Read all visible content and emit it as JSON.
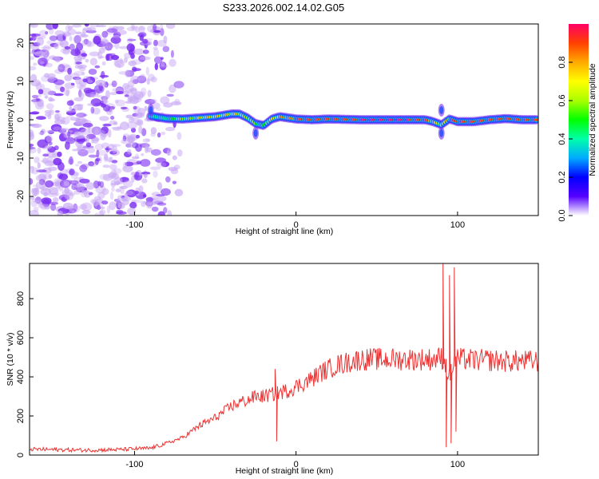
{
  "figure": {
    "title": "S233.2026.002.14.02.G05"
  },
  "chart_data": [
    {
      "type": "heatmap",
      "name": "spectrogram",
      "xlabel": "Height of straight line (km)",
      "ylabel": "Frequency (Hz)",
      "xlim": [
        -165,
        150
      ],
      "ylim": [
        -25,
        25
      ],
      "xticks": [
        -100,
        0,
        100
      ],
      "yticks": [
        -20,
        -10,
        0,
        10,
        20
      ],
      "colorbar": {
        "label": "Normalized spectral amplitude",
        "range": [
          0,
          1
        ],
        "ticks": [
          0,
          0.2,
          0.4,
          0.6,
          0.8
        ],
        "colors": [
          "#ffffff",
          "#5500ff",
          "#0000ff",
          "#00aaff",
          "#00ffaa",
          "#00ff00",
          "#aaff00",
          "#ffff00",
          "#ffaa00",
          "#ff4000",
          "#ff0066"
        ]
      },
      "noise_region": {
        "x_range": [
          -165,
          -70
        ],
        "amplitude_range": [
          0.0,
          0.15
        ]
      },
      "ridge": {
        "x": [
          -90,
          -80,
          -70,
          -60,
          -50,
          -40,
          -35,
          -30,
          -25,
          -20,
          -15,
          -10,
          -5,
          0,
          10,
          20,
          30,
          40,
          50,
          60,
          70,
          80,
          85,
          90,
          95,
          100,
          110,
          120,
          130,
          140,
          150
        ],
        "frequency": [
          1.0,
          0.3,
          0.2,
          0.5,
          0.8,
          1.5,
          1.5,
          0.5,
          -1.0,
          -1.5,
          0.2,
          0.8,
          0.5,
          0.2,
          0.0,
          0.2,
          0.1,
          0.0,
          0.0,
          0.0,
          0.0,
          0.0,
          -0.5,
          -1.3,
          0.2,
          -0.5,
          -0.5,
          0.0,
          0.3,
          0.0,
          0.0
        ],
        "amplitude": [
          0.35,
          0.45,
          0.6,
          0.65,
          0.7,
          0.75,
          0.7,
          0.6,
          0.55,
          0.5,
          0.7,
          0.75,
          0.8,
          0.85,
          0.85,
          0.9,
          0.9,
          0.95,
          0.95,
          0.95,
          0.95,
          0.9,
          0.8,
          0.55,
          0.85,
          0.9,
          0.9,
          0.9,
          0.9,
          0.92,
          0.95
        ]
      },
      "color_scale_label": "Normalized spectral amplitude"
    },
    {
      "type": "line",
      "name": "snr",
      "xlabel": "Height of straight line (km)",
      "ylabel": "SNR (10 * v/v)",
      "xlim": [
        -165,
        150
      ],
      "ylim": [
        0,
        980
      ],
      "xticks": [
        -100,
        0,
        100
      ],
      "yticks": [
        0,
        200,
        400,
        600,
        800
      ],
      "line_color": "#ee3333",
      "series": [
        {
          "name": "SNR",
          "x": [
            -165,
            -150,
            -130,
            -110,
            -90,
            -80,
            -70,
            -65,
            -60,
            -55,
            -50,
            -45,
            -40,
            -35,
            -30,
            -25,
            -20,
            -15,
            -10,
            -5,
            0,
            5,
            10,
            15,
            20,
            25,
            30,
            35,
            40,
            50,
            60,
            70,
            80,
            85,
            88,
            90,
            92,
            95,
            98,
            100,
            105,
            110,
            120,
            130,
            140,
            150
          ],
          "y": [
            30,
            28,
            25,
            28,
            35,
            60,
            90,
            120,
            150,
            170,
            190,
            220,
            250,
            270,
            280,
            300,
            300,
            310,
            320,
            330,
            350,
            370,
            390,
            420,
            440,
            460,
            470,
            480,
            490,
            490,
            490,
            490,
            490,
            490,
            495,
            500,
            480,
            400,
            480,
            490,
            490,
            485,
            485,
            480,
            480,
            480
          ],
          "spikes": [
            {
              "x": -13,
              "y": 440
            },
            {
              "x": -12,
              "y": 70
            },
            {
              "x": 91,
              "y": 980
            },
            {
              "x": 93,
              "y": 40
            },
            {
              "x": 95,
              "y": 920
            },
            {
              "x": 96,
              "y": 60
            },
            {
              "x": 98,
              "y": 960
            },
            {
              "x": 99,
              "y": 120
            }
          ]
        }
      ]
    }
  ]
}
